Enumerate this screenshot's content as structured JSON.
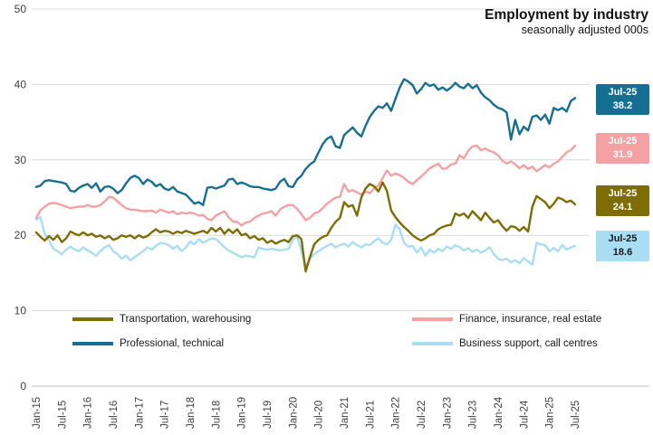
{
  "header": {
    "title": "Employment by industry",
    "subtitle": "seasonally adjusted 000s"
  },
  "chart_data": {
    "type": "line",
    "title": "Employment by industry",
    "subtitle": "seasonally adjusted 000s",
    "ylabel": "",
    "xlabel": "",
    "ylim": [
      0,
      50
    ],
    "y_ticks": [
      0,
      10,
      20,
      30,
      40,
      50
    ],
    "grid": "horizontal",
    "legend_position": "bottom",
    "x_tick_labels": [
      "Jan-15",
      "Jul-15",
      "Jan-16",
      "Jul-16",
      "Jan-17",
      "Jul-17",
      "Jan-18",
      "Jul-18",
      "Jan-19",
      "Jul-19",
      "Jan-20",
      "Jul-20",
      "Jan-21",
      "Jul-21",
      "Jan-22",
      "Jul-22",
      "Jan-23",
      "Jul-23",
      "Jan-24",
      "Jul-24",
      "Jan-25",
      "Jul-25"
    ],
    "months_per_tick": 6,
    "series": [
      {
        "id": "business-support",
        "name": "Business support, call centres",
        "color": "#a8ddf3",
        "values": [
          22.1,
          22.4,
          20.2,
          19.3,
          18.2,
          17.9,
          17.5,
          18.1,
          18.5,
          18.1,
          17.9,
          18.4,
          18.0,
          17.7,
          17.3,
          17.9,
          18.4,
          18.7,
          17.9,
          17.5,
          16.9,
          17.3,
          16.7,
          17.1,
          17.5,
          17.9,
          18.4,
          18.1,
          18.6,
          19.0,
          18.9,
          18.7,
          18.2,
          18.6,
          17.9,
          18.4,
          19.2,
          18.8,
          19.5,
          19.0,
          19.3,
          19.6,
          19.5,
          19.0,
          18.4,
          18.0,
          17.7,
          17.4,
          17.1,
          17.3,
          17.2,
          17.1,
          18.4,
          18.2,
          18.1,
          18.2,
          18.1,
          18.0,
          18.1,
          18.2,
          19.4,
          19.9,
          17.9,
          15.8,
          16.9,
          17.5,
          17.9,
          18.3,
          18.6,
          18.9,
          18.4,
          18.7,
          18.9,
          18.5,
          19.1,
          18.7,
          18.4,
          18.8,
          18.7,
          19.2,
          19.6,
          19.0,
          18.8,
          19.4,
          21.4,
          20.8,
          19.0,
          18.5,
          18.6,
          17.7,
          18.4,
          17.3,
          18.1,
          17.7,
          18.2,
          17.9,
          18.5,
          18.2,
          18.7,
          18.4,
          18.0,
          18.3,
          17.8,
          18.1,
          17.7,
          18.0,
          18.4,
          17.5,
          16.9,
          16.7,
          16.9,
          16.4,
          16.7,
          16.3,
          17.0,
          16.5,
          16.1,
          19.0,
          18.8,
          18.7,
          17.9,
          18.3,
          17.9,
          18.7,
          18.1,
          18.4,
          18.6
        ]
      },
      {
        "id": "finance",
        "name": "Finance, insurance, real estate",
        "color": "#f4a1a4",
        "values": [
          22.3,
          23.3,
          23.8,
          24.2,
          24.3,
          24.2,
          24.0,
          23.8,
          23.6,
          23.7,
          23.8,
          23.8,
          24.0,
          23.8,
          23.8,
          24.0,
          24.5,
          25.1,
          25.0,
          24.5,
          24.0,
          23.6,
          23.4,
          23.4,
          23.3,
          23.2,
          23.2,
          23.3,
          23.0,
          23.4,
          23.2,
          23.0,
          23.2,
          22.8,
          23.0,
          22.9,
          23.0,
          22.9,
          22.6,
          22.7,
          22.2,
          22.0,
          22.6,
          22.9,
          23.2,
          22.4,
          21.8,
          21.8,
          21.3,
          21.7,
          21.8,
          22.3,
          22.6,
          22.9,
          23.0,
          23.2,
          22.6,
          23.4,
          23.8,
          24.0,
          24.0,
          23.5,
          22.8,
          22.0,
          22.3,
          22.9,
          23.1,
          23.6,
          24.2,
          24.6,
          25.0,
          25.1,
          26.8,
          25.8,
          26.0,
          25.7,
          25.4,
          25.8,
          25.6,
          26.2,
          26.6,
          27.6,
          28.6,
          27.9,
          28.2,
          28.0,
          27.6,
          27.1,
          26.8,
          27.3,
          27.8,
          28.3,
          28.9,
          29.2,
          29.5,
          28.8,
          28.9,
          29.4,
          29.5,
          30.6,
          30.2,
          31.2,
          31.8,
          31.9,
          31.3,
          31.5,
          31.2,
          31.0,
          30.6,
          29.9,
          29.5,
          29.8,
          29.4,
          28.9,
          29.3,
          28.8,
          29.1,
          28.5,
          28.9,
          29.3,
          29.0,
          29.5,
          29.8,
          30.4,
          31.0,
          31.3,
          31.9
        ]
      },
      {
        "id": "transportation",
        "name": "Transportation, warehousing",
        "color": "#7e6c04",
        "values": [
          20.4,
          19.8,
          19.3,
          19.9,
          19.4,
          20.0,
          19.1,
          19.6,
          20.5,
          20.2,
          20.0,
          20.4,
          20.0,
          20.2,
          19.8,
          20.0,
          19.6,
          19.9,
          19.4,
          19.6,
          20.0,
          19.8,
          20.0,
          19.6,
          20.0,
          19.7,
          19.9,
          20.4,
          20.8,
          20.4,
          20.6,
          20.5,
          20.2,
          20.5,
          20.3,
          20.6,
          20.4,
          20.2,
          20.4,
          20.6,
          20.3,
          21.0,
          20.5,
          21.0,
          20.2,
          20.8,
          20.3,
          20.8,
          20.0,
          20.2,
          19.6,
          19.9,
          19.4,
          19.6,
          19.0,
          19.3,
          18.9,
          19.2,
          19.4,
          19.1,
          19.9,
          20.0,
          19.5,
          15.2,
          17.1,
          18.8,
          19.4,
          19.8,
          20.0,
          21.0,
          21.8,
          22.3,
          24.4,
          23.8,
          24.0,
          22.6,
          25.0,
          26.2,
          26.8,
          26.5,
          25.8,
          27.0,
          25.9,
          23.3,
          22.4,
          21.7,
          21.1,
          20.6,
          20.0,
          19.6,
          19.3,
          19.6,
          20.0,
          20.2,
          20.8,
          21.1,
          21.3,
          21.4,
          22.9,
          22.6,
          22.9,
          22.3,
          23.2,
          22.6,
          22.0,
          23.0,
          22.3,
          21.7,
          22.0,
          21.2,
          20.6,
          21.2,
          21.1,
          20.6,
          21.1,
          20.5,
          23.8,
          25.2,
          24.8,
          24.4,
          23.6,
          24.2,
          25.0,
          24.8,
          24.4,
          24.6,
          24.1
        ]
      },
      {
        "id": "professional",
        "name": "Professional, technical",
        "color": "#156f93",
        "values": [
          26.4,
          26.6,
          27.2,
          27.3,
          27.2,
          27.1,
          27.0,
          26.8,
          25.9,
          25.8,
          26.3,
          26.6,
          26.8,
          26.3,
          26.9,
          25.8,
          26.4,
          26.5,
          26.2,
          25.6,
          26.0,
          26.9,
          27.6,
          27.9,
          27.6,
          26.8,
          27.4,
          27.1,
          26.5,
          26.8,
          26.2,
          26.0,
          26.4,
          25.8,
          25.6,
          25.4,
          24.8,
          24.2,
          24.4,
          24.0,
          26.3,
          26.4,
          26.2,
          26.4,
          26.6,
          27.4,
          27.5,
          26.8,
          27.0,
          26.8,
          26.5,
          26.4,
          26.4,
          26.2,
          26.1,
          26.0,
          26.2,
          27.1,
          27.5,
          26.5,
          26.4,
          27.4,
          27.9,
          28.8,
          29.4,
          29.8,
          31.0,
          32.1,
          32.8,
          33.1,
          31.8,
          31.6,
          33.3,
          33.8,
          34.3,
          33.6,
          33.1,
          34.5,
          35.7,
          36.5,
          37.1,
          36.9,
          37.5,
          36.5,
          38.1,
          39.6,
          40.7,
          40.4,
          39.9,
          38.8,
          39.4,
          40.2,
          39.8,
          40.0,
          39.3,
          39.6,
          39.2,
          39.6,
          40.2,
          39.7,
          39.5,
          40.1,
          39.5,
          39.9,
          38.9,
          38.3,
          37.9,
          37.3,
          36.9,
          36.7,
          36.3,
          32.7,
          35.3,
          33.4,
          34.4,
          33.9,
          35.7,
          35.9,
          35.3,
          36.0,
          34.8,
          36.9,
          36.6,
          36.9,
          36.4,
          37.8,
          38.2
        ]
      }
    ],
    "end_labels": [
      {
        "period": "Jul-25",
        "value": "38.2",
        "color": "#156f93",
        "text_color": "#ffffff"
      },
      {
        "period": "Jul-25",
        "value": "31.9",
        "color": "#f4a1a4",
        "text_color": "#ffffff"
      },
      {
        "period": "Jul-25",
        "value": "24.1",
        "color": "#7e6c04",
        "text_color": "#ffffff"
      },
      {
        "period": "Jul-25",
        "value": "18.6",
        "color": "#a8ddf3",
        "text_color": "#1a1a1a"
      }
    ]
  },
  "legend": {
    "row1_col1": "Transportation, warehousing",
    "row1_col2": "Finance, insurance, real estate",
    "row2_col1": "Professional, technical",
    "row2_col2": "Business support, call centres"
  }
}
